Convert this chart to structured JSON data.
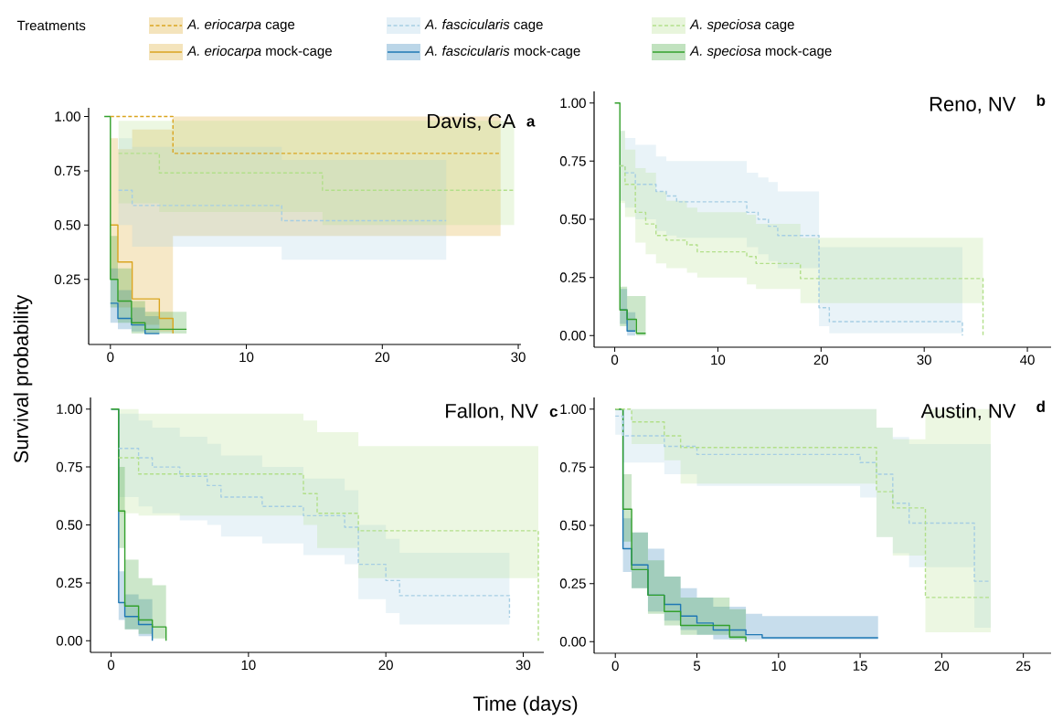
{
  "chart_data": [
    {
      "type": "step",
      "title": "Davis, CA",
      "annotations": [
        "a"
      ],
      "ylabel": "Survival probability",
      "legend_title": "Treatments",
      "legend": "top",
      "xlim": [
        -1.6,
        30.2
      ],
      "ylim": [
        -0.05,
        1.04
      ],
      "xticks": [
        0,
        10,
        20,
        30
      ],
      "yticks": [
        {
          "value": 0.25,
          "label": "0.25"
        },
        {
          "value": 0.5,
          "label": "0.50"
        },
        {
          "value": 0.75,
          "label": "0.75"
        },
        {
          "value": 1,
          "label": "1.00"
        }
      ],
      "series": [
        {
          "name": "*A. eriocarpa* cage",
          "color": "#daa520",
          "line_style": "dashed",
          "x": [
            0,
            4.6,
            28.7
          ],
          "values": [
            1,
            0.83,
            0.83
          ],
          "lower": [
            1,
            0.45,
            0.45
          ],
          "upper": [
            1,
            1,
            1
          ]
        },
        {
          "name": "*A. eriocarpa* mock-cage",
          "color": "#daa520",
          "line_style": "solid",
          "x": [
            0,
            0.55,
            1.6,
            3.6,
            4.6
          ],
          "values": [
            0.5,
            0.33,
            0.16,
            0.07,
            0.0
          ],
          "lower": [
            0.25,
            0.12,
            0.04,
            0.01,
            0.0
          ],
          "upper": [
            0.9,
            0.85,
            0.94,
            0.94,
            0.94
          ]
        },
        {
          "name": "*A. fascicularis* cage",
          "color": "#a6cee3",
          "line_style": "dashed",
          "x": [
            0.6,
            1.6,
            12.6,
            24.7
          ],
          "values": [
            0.66,
            0.59,
            0.52,
            0.52
          ],
          "lower": [
            0.5,
            0.4,
            0.34,
            0.34
          ],
          "upper": [
            0.9,
            0.86,
            0.8,
            0.8
          ]
        },
        {
          "name": "*A. fascicularis* mock-cage",
          "color": "#1f78b4",
          "line_style": "solid",
          "x": [
            0,
            0.55,
            1.55,
            2.55,
            3.6
          ],
          "values": [
            0.14,
            0.07,
            0.04,
            0.0,
            0.0
          ],
          "lower": [
            0.05,
            0.02,
            0.01,
            0.0,
            0.0
          ],
          "upper": [
            0.3,
            0.2,
            0.12,
            0.08,
            0.08
          ]
        },
        {
          "name": "*A. speciosa* cage",
          "color": "#b2df8a",
          "line_style": "dashed",
          "x": [
            0.6,
            3.6,
            15.6,
            29.7
          ],
          "values": [
            0.83,
            0.74,
            0.66,
            0.66
          ],
          "lower": [
            0.6,
            0.56,
            0.5,
            0.5
          ],
          "upper": [
            0.98,
            0.98,
            0.98,
            0.98
          ]
        },
        {
          "name": "*A. speciosa* mock-cage",
          "color": "#33a02c",
          "line_style": "solid",
          "x": [
            -0.45,
            0,
            0.55,
            1.55,
            2.55,
            5.6
          ],
          "values": [
            1,
            0.25,
            0.15,
            0.05,
            0.02,
            0.02
          ],
          "lower": [
            1,
            0.12,
            0.05,
            0.0,
            0.0,
            0.0
          ],
          "upper": [
            1,
            0.45,
            0.3,
            0.15,
            0.1,
            0.1
          ]
        }
      ]
    },
    {
      "type": "step",
      "title": "Reno, NV",
      "annotations": [
        "b"
      ],
      "xlim": [
        -2.0,
        42.3
      ],
      "ylim": [
        -0.05,
        1.05
      ],
      "xticks": [
        0,
        10,
        20,
        30,
        40
      ],
      "yticks": [
        {
          "value": 0,
          "label": "0.00"
        },
        {
          "value": 0.25,
          "label": "0.25"
        },
        {
          "value": 0.5,
          "label": "0.50"
        },
        {
          "value": 0.75,
          "label": "0.75"
        },
        {
          "value": 1,
          "label": "1.00"
        }
      ],
      "series": [
        {
          "color": "#a6cee3",
          "line_style": "dashed",
          "x": [
            0.5,
            1.0,
            2.0,
            4.0,
            5.0,
            6.0,
            12.8,
            13.9,
            14.9,
            15.8,
            19.8,
            20.8,
            33.7
          ],
          "values": [
            0.73,
            0.7,
            0.65,
            0.62,
            0.6,
            0.575,
            0.53,
            0.5,
            0.47,
            0.43,
            0.12,
            0.06,
            0.0
          ],
          "lower": [
            0.58,
            0.55,
            0.5,
            0.45,
            0.43,
            0.42,
            0.38,
            0.35,
            0.32,
            0.29,
            0.04,
            0.01,
            0.01
          ],
          "upper": [
            0.88,
            0.85,
            0.82,
            0.77,
            0.75,
            0.75,
            0.7,
            0.68,
            0.66,
            0.62,
            0.38,
            0.38,
            0.38
          ]
        },
        {
          "color": "#1f78b4",
          "line_style": "solid",
          "x": [
            0.5,
            1.2,
            2.0
          ],
          "values": [
            0.11,
            0.02,
            0.02
          ],
          "lower": [
            0.05,
            0.0,
            0.0
          ],
          "upper": [
            0.2,
            0.1,
            0.1
          ]
        },
        {
          "color": "#b2df8a",
          "line_style": "dashed",
          "x": [
            0.5,
            1.0,
            2.0,
            3.0,
            4.0,
            5.0,
            7.0,
            8.0,
            12.8,
            13.7,
            18.0,
            35.7
          ],
          "values": [
            0.73,
            0.65,
            0.53,
            0.48,
            0.43,
            0.41,
            0.39,
            0.36,
            0.34,
            0.31,
            0.245,
            0.0
          ],
          "lower": [
            0.57,
            0.51,
            0.4,
            0.35,
            0.31,
            0.29,
            0.27,
            0.25,
            0.22,
            0.2,
            0.14,
            0.14
          ],
          "upper": [
            0.88,
            0.8,
            0.72,
            0.7,
            0.62,
            0.58,
            0.55,
            0.53,
            0.52,
            0.48,
            0.42,
            0.42
          ]
        },
        {
          "color": "#33a02c",
          "line_style": "solid",
          "x": [
            0,
            0.5,
            1.2,
            2.1,
            3.0
          ],
          "values": [
            1,
            0.11,
            0.07,
            0.01,
            0.01
          ],
          "lower": [
            1,
            0.04,
            0.02,
            0.0,
            0.0
          ],
          "upper": [
            1,
            0.21,
            0.17,
            0.17,
            0.17
          ]
        }
      ]
    },
    {
      "type": "step",
      "title": "Fallon, NV",
      "annotations": [
        "c"
      ],
      "xlabel": "Time (days)",
      "xlim": [
        -1.5,
        31.5
      ],
      "ylim": [
        -0.05,
        1.05
      ],
      "xticks": [
        0,
        10,
        20,
        30
      ],
      "yticks": [
        {
          "value": 0,
          "label": "0.00"
        },
        {
          "value": 0.25,
          "label": "0.25"
        },
        {
          "value": 0.5,
          "label": "0.50"
        },
        {
          "value": 0.75,
          "label": "0.75"
        },
        {
          "value": 1,
          "label": "1.00"
        }
      ],
      "series": [
        {
          "color": "#a6cee3",
          "line_style": "dashed",
          "x": [
            0.55,
            2,
            3,
            5,
            7,
            8,
            11,
            14,
            17,
            18,
            20,
            21,
            29
          ],
          "values": [
            0.83,
            0.79,
            0.75,
            0.71,
            0.67,
            0.62,
            0.58,
            0.54,
            0.49,
            0.33,
            0.26,
            0.195,
            0.1
          ],
          "lower": [
            0.62,
            0.58,
            0.55,
            0.52,
            0.5,
            0.45,
            0.42,
            0.37,
            0.33,
            0.18,
            0.12,
            0.07,
            0.07
          ],
          "upper": [
            0.98,
            0.95,
            0.92,
            0.88,
            0.85,
            0.8,
            0.75,
            0.7,
            0.65,
            0.5,
            0.44,
            0.38,
            0.38
          ]
        },
        {
          "color": "#1f78b4",
          "line_style": "solid",
          "x": [
            0,
            0.55,
            1,
            2,
            3
          ],
          "values": [
            1,
            0.165,
            0.105,
            0.07,
            0.0
          ],
          "lower": [
            1,
            0.09,
            0.05,
            0.02,
            0.0
          ],
          "upper": [
            1,
            0.3,
            0.2,
            0.18,
            0.18
          ]
        },
        {
          "color": "#b2df8a",
          "line_style": "dashed",
          "x": [
            0.55,
            2,
            14,
            15,
            18,
            31.1
          ],
          "values": [
            0.79,
            0.72,
            0.635,
            0.55,
            0.475,
            0.0
          ],
          "lower": [
            0.55,
            0.54,
            0.5,
            0.4,
            0.27,
            0.27
          ],
          "upper": [
            1,
            0.98,
            0.95,
            0.9,
            0.84,
            0.84
          ]
        },
        {
          "color": "#33a02c",
          "line_style": "solid",
          "x": [
            0,
            0.55,
            1.0,
            2.0,
            3.0,
            4.0
          ],
          "values": [
            1,
            0.56,
            0.15,
            0.09,
            0.06,
            0.0
          ],
          "lower": [
            1,
            0.4,
            0.05,
            0.03,
            0.01,
            0.0
          ],
          "upper": [
            1,
            0.75,
            0.35,
            0.27,
            0.24,
            0.24
          ]
        }
      ]
    },
    {
      "type": "step",
      "title": "Austin, NV",
      "annotations": [
        "d"
      ],
      "xlim": [
        -1.3,
        26.7
      ],
      "ylim": [
        -0.05,
        1.05
      ],
      "xticks": [
        0,
        5,
        10,
        15,
        20,
        25
      ],
      "yticks": [
        {
          "value": 0,
          "label": "0.00"
        },
        {
          "value": 0.25,
          "label": "0.25"
        },
        {
          "value": 0.5,
          "label": "0.50"
        },
        {
          "value": 0.75,
          "label": "0.75"
        },
        {
          "value": 1,
          "label": "1.00"
        }
      ],
      "series": [
        {
          "color": "#a6cee3",
          "line_style": "dashed",
          "x": [
            0,
            0.47,
            3,
            5,
            15,
            16,
            17,
            18,
            22,
            23
          ],
          "values": [
            0.97,
            0.885,
            0.84,
            0.805,
            0.77,
            0.72,
            0.595,
            0.51,
            0.26,
            0.26
          ],
          "lower": [
            0.89,
            0.77,
            0.72,
            0.67,
            0.62,
            0.45,
            0.38,
            0.32,
            0.06,
            0.06
          ],
          "upper": [
            1,
            1,
            1,
            1,
            1,
            0.92,
            0.88,
            0.85,
            0.85,
            0.85
          ]
        },
        {
          "color": "#1f78b4",
          "line_style": "solid",
          "x": [
            0,
            0.47,
            1,
            2,
            3,
            4,
            5,
            6,
            8,
            9,
            16.1
          ],
          "values": [
            1,
            0.4,
            0.33,
            0.2,
            0.16,
            0.11,
            0.08,
            0.05,
            0.03,
            0.017,
            0.017
          ],
          "lower": [
            1,
            0.3,
            0.23,
            0.13,
            0.09,
            0.05,
            0.03,
            0.01,
            0.01,
            0.01,
            0.01
          ],
          "upper": [
            1,
            0.53,
            0.47,
            0.4,
            0.28,
            0.23,
            0.19,
            0.15,
            0.12,
            0.11,
            0.11
          ]
        },
        {
          "color": "#b2df8a",
          "line_style": "dashed",
          "x": [
            0,
            1,
            3,
            4,
            16,
            17,
            19,
            23
          ],
          "values": [
            1,
            0.945,
            0.885,
            0.835,
            0.645,
            0.575,
            0.19,
            0.19
          ],
          "lower": [
            1,
            0.85,
            0.78,
            0.68,
            0.45,
            0.37,
            0.04,
            0.04
          ],
          "upper": [
            1,
            1,
            1,
            1,
            0.92,
            0.87,
            1,
            1
          ]
        },
        {
          "color": "#33a02c",
          "line_style": "solid",
          "x": [
            0,
            0.47,
            1,
            2,
            3,
            4,
            7,
            8
          ],
          "values": [
            1,
            0.57,
            0.31,
            0.2,
            0.13,
            0.07,
            0.02,
            0.0
          ],
          "lower": [
            1,
            0.43,
            0.23,
            0.12,
            0.07,
            0.03,
            0.01,
            0.0
          ],
          "upper": [
            1,
            0.72,
            0.47,
            0.35,
            0.28,
            0.19,
            0.14,
            0.14
          ]
        }
      ]
    }
  ]
}
